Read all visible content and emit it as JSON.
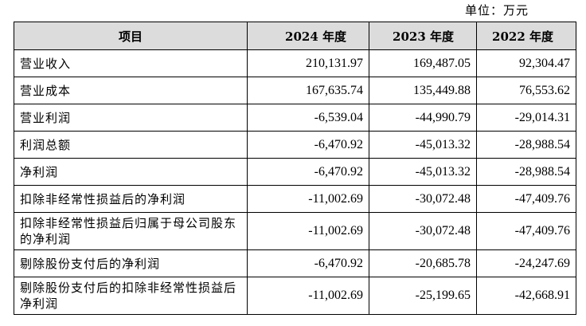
{
  "unit_label": "单位：万元",
  "table": {
    "headers": [
      "项目",
      "2024 年度",
      "2023 年度",
      "2022 年度"
    ],
    "rows": [
      {
        "label": "营业收入",
        "values": [
          "210,131.97",
          "169,487.05",
          "92,304.47"
        ]
      },
      {
        "label": "营业成本",
        "values": [
          "167,635.74",
          "135,449.88",
          "76,553.62"
        ]
      },
      {
        "label": "营业利润",
        "values": [
          "-6,539.04",
          "-44,990.79",
          "-29,014.31"
        ]
      },
      {
        "label": "利润总额",
        "values": [
          "-6,470.92",
          "-45,013.32",
          "-28,988.54"
        ]
      },
      {
        "label": "净利润",
        "values": [
          "-6,470.92",
          "-45,013.32",
          "-28,988.54"
        ]
      },
      {
        "label": "扣除非经常性损益后的净利润",
        "values": [
          "-11,002.69",
          "-30,072.48",
          "-47,409.76"
        ]
      },
      {
        "label": "扣除非经常性损益后归属于母公司股东的净利润",
        "values": [
          "-11,002.69",
          "-30,072.48",
          "-47,409.76"
        ]
      },
      {
        "label": "剔除股份支付后的净利润",
        "values": [
          "-6,470.92",
          "-20,685.78",
          "-24,247.69"
        ]
      },
      {
        "label": "剔除股份支付后的扣除非经常性损益后净利润",
        "values": [
          "-11,002.69",
          "-25,199.65",
          "-42,668.91"
        ]
      }
    ]
  }
}
